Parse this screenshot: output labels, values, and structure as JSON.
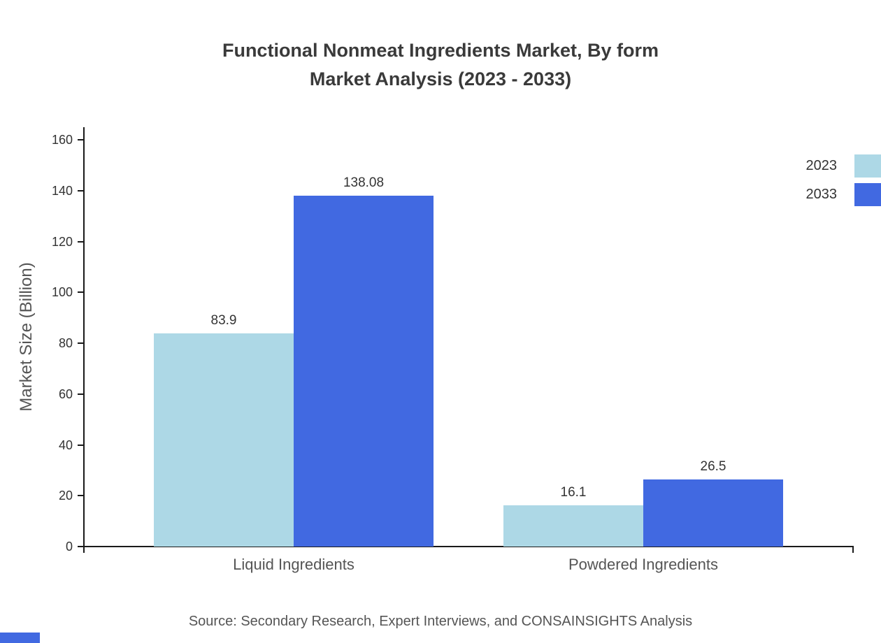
{
  "title": {
    "line1": "Functional Nonmeat Ingredients Market, By form",
    "line2": "Market Analysis (2023 - 2033)"
  },
  "source": "Source: Secondary Research, Expert Interviews, and CONSAINSIGHTS Analysis",
  "chart_data": {
    "type": "bar",
    "title": "Functional Nonmeat Ingredients Market, By form Market Analysis (2023 - 2033)",
    "categories": [
      "Liquid Ingredients",
      "Powdered Ingredients"
    ],
    "series": [
      {
        "name": "2023",
        "color": "#ADD8E6",
        "values": [
          83.9,
          16.1
        ]
      },
      {
        "name": "2033",
        "color": "#4169E1",
        "values": [
          138.08,
          26.5
        ]
      }
    ],
    "value_labels": [
      [
        "83.9",
        "16.1"
      ],
      [
        "138.08",
        "26.5"
      ]
    ],
    "xlabel": "",
    "ylabel": "Market Size (Billion)",
    "ylim": [
      0,
      160
    ],
    "yticks": [
      0,
      20,
      40,
      60,
      80,
      100,
      120,
      140,
      160
    ],
    "grid": false,
    "legend_position": "top-right"
  }
}
